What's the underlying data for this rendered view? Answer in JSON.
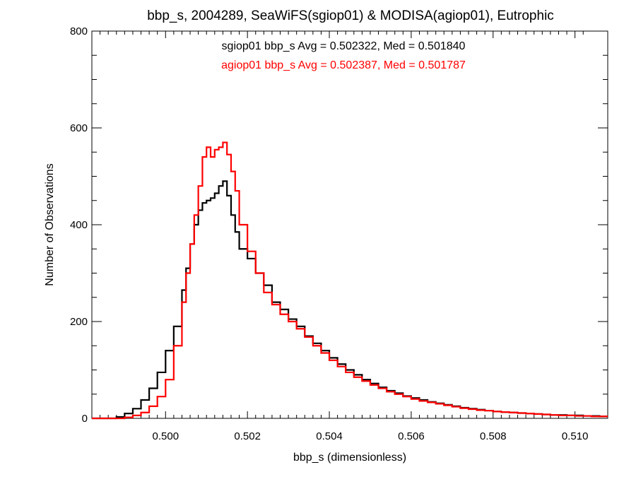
{
  "chart_data": {
    "type": "line",
    "title": "bbp_s, 2004289, SeaWiFS(sgiop01) & MODISA(agiop01), Eutrophic",
    "xlabel": "bbp_s (dimensionless)",
    "ylabel": "Number of Observations",
    "xlim": [
      0.4982,
      0.5108
    ],
    "ylim": [
      0,
      800
    ],
    "x_ticks": [
      "0.500",
      "0.502",
      "0.504",
      "0.506",
      "0.508",
      "0.510"
    ],
    "x_tick_values": [
      0.5,
      0.502,
      0.504,
      0.506,
      0.508,
      0.51
    ],
    "y_ticks": [
      "0",
      "200",
      "400",
      "600",
      "800"
    ],
    "y_tick_values": [
      0,
      200,
      400,
      600,
      800
    ],
    "grid": false,
    "legend": "none",
    "annotations": [
      {
        "text": "sgiop01 bbp_s Avg = 0.502322, Med = 0.501840",
        "color": "#000000"
      },
      {
        "text": "agiop01 bbp_s Avg = 0.502387, Med = 0.501787",
        "color": "#ff0000"
      }
    ],
    "series": [
      {
        "color": "#000000",
        "x": [
          0.4982,
          0.4986,
          0.4988,
          0.499,
          0.4992,
          0.4994,
          0.4996,
          0.4998,
          0.5,
          0.5002,
          0.5004,
          0.5005,
          0.5006,
          0.5007,
          0.5008,
          0.5009,
          0.501,
          0.5011,
          0.5012,
          0.5013,
          0.5014,
          0.5015,
          0.5016,
          0.5017,
          0.5018,
          0.502,
          0.5022,
          0.5024,
          0.5026,
          0.5028,
          0.503,
          0.5032,
          0.5034,
          0.5036,
          0.5038,
          0.504,
          0.5042,
          0.5044,
          0.5046,
          0.5048,
          0.505,
          0.5052,
          0.5054,
          0.5056,
          0.5058,
          0.506,
          0.5062,
          0.5064,
          0.5066,
          0.5068,
          0.507,
          0.5072,
          0.5074,
          0.5076,
          0.5078,
          0.508,
          0.5082,
          0.5084,
          0.5086,
          0.5088,
          0.509,
          0.5092,
          0.5094,
          0.5096,
          0.5098,
          0.51,
          0.5102,
          0.5104,
          0.5106,
          0.5108
        ],
        "y": [
          0,
          0,
          3,
          10,
          20,
          38,
          62,
          95,
          140,
          190,
          265,
          310,
          360,
          400,
          430,
          445,
          450,
          455,
          465,
          480,
          490,
          460,
          420,
          385,
          350,
          330,
          300,
          275,
          240,
          225,
          205,
          190,
          170,
          155,
          140,
          125,
          112,
          100,
          90,
          80,
          72,
          64,
          57,
          52,
          46,
          42,
          38,
          34,
          31,
          28,
          25,
          22,
          20,
          18,
          16,
          14,
          13,
          12,
          11,
          10,
          9,
          8,
          7,
          7,
          6,
          6,
          5,
          5,
          4,
          4
        ]
      },
      {
        "color": "#ff0000",
        "x": [
          0.4982,
          0.4986,
          0.4988,
          0.499,
          0.4992,
          0.4994,
          0.4996,
          0.4998,
          0.5,
          0.5002,
          0.5004,
          0.5005,
          0.5006,
          0.5007,
          0.5008,
          0.5009,
          0.501,
          0.5011,
          0.5012,
          0.5013,
          0.5014,
          0.5015,
          0.5016,
          0.5017,
          0.5018,
          0.502,
          0.5022,
          0.5024,
          0.5026,
          0.5028,
          0.503,
          0.5032,
          0.5034,
          0.5036,
          0.5038,
          0.504,
          0.5042,
          0.5044,
          0.5046,
          0.5048,
          0.505,
          0.5052,
          0.5054,
          0.5056,
          0.5058,
          0.506,
          0.5062,
          0.5064,
          0.5066,
          0.5068,
          0.507,
          0.5072,
          0.5074,
          0.5076,
          0.5078,
          0.508,
          0.5082,
          0.5084,
          0.5086,
          0.5088,
          0.509,
          0.5092,
          0.5094,
          0.5096,
          0.5098,
          0.51,
          0.5102,
          0.5104,
          0.5106,
          0.5108
        ],
        "y": [
          0,
          0,
          0,
          2,
          6,
          12,
          25,
          45,
          80,
          150,
          240,
          300,
          360,
          420,
          480,
          540,
          560,
          540,
          555,
          560,
          570,
          545,
          510,
          470,
          400,
          345,
          300,
          260,
          235,
          215,
          200,
          185,
          168,
          150,
          135,
          120,
          107,
          95,
          85,
          77,
          69,
          62,
          55,
          50,
          45,
          40,
          36,
          33,
          30,
          27,
          24,
          21,
          19,
          17,
          16,
          14,
          13,
          12,
          11,
          10,
          9,
          8,
          7,
          6,
          6,
          5,
          5,
          4,
          4,
          4
        ]
      }
    ]
  }
}
